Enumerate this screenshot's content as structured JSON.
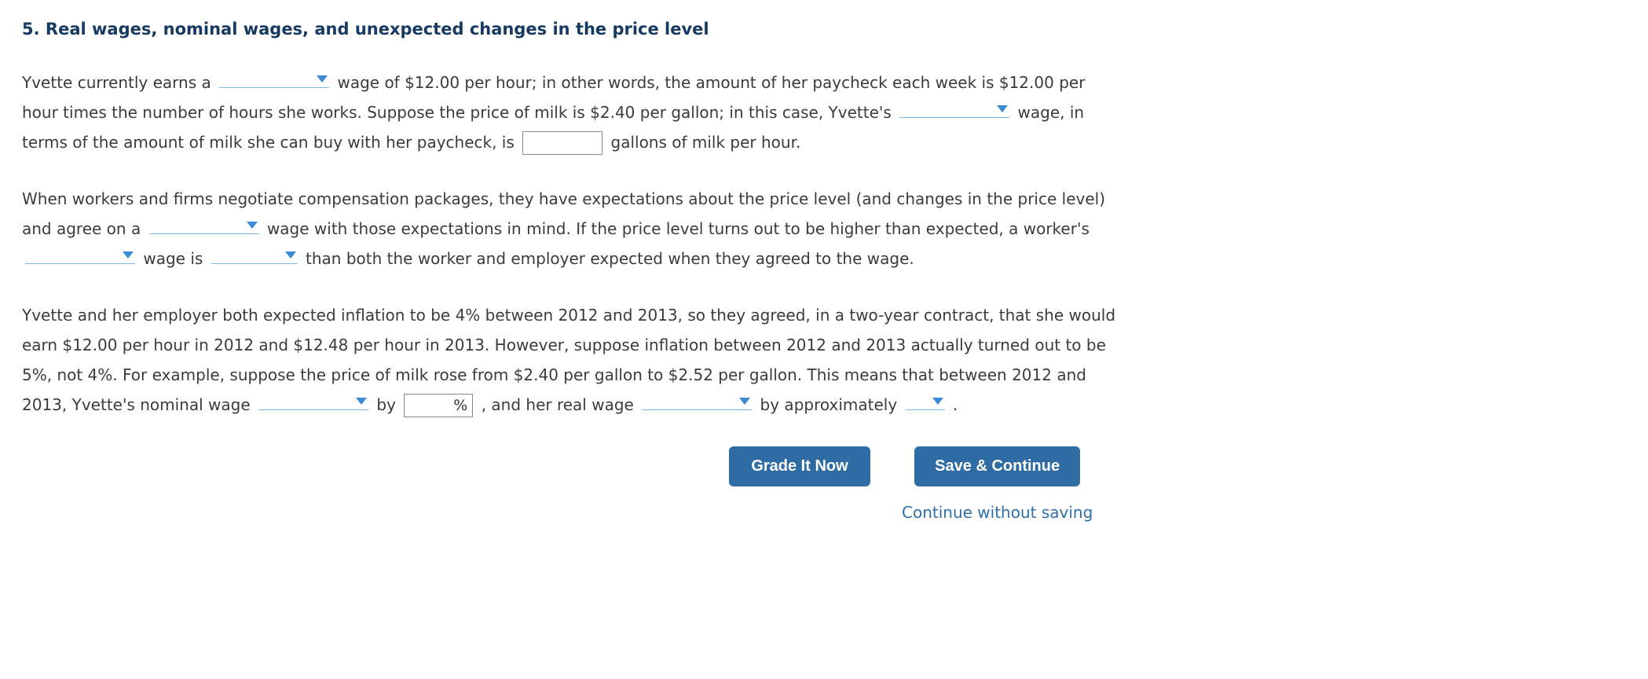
{
  "title": "5. Real wages, nominal wages, and unexpected changes in the price level",
  "para1": {
    "t1": "Yvette currently earns a",
    "t2": "wage of $12.00 per hour; in other words, the amount of her paycheck each week is $12.00 per hour times the number of hours she works. Suppose the price of milk is $2.40 per gallon; in this case, Yvette's",
    "t3": "wage, in terms of the amount of milk she can buy with her paycheck, is",
    "t4": "gallons of milk per hour."
  },
  "para2": {
    "t1": "When workers and firms negotiate compensation packages, they have expectations about the price level (and changes in the price level) and agree on a",
    "t2": "wage with those expectations in mind. If the price level turns out to be higher than expected, a worker's",
    "t3": "wage is",
    "t4": "than both the worker and employer expected when they agreed to the wage."
  },
  "para3": {
    "t1": "Yvette and her employer both expected inflation to be 4% between 2012 and 2013, so they agreed, in a two-year contract, that she would earn $12.00 per hour in 2012 and $12.48 per hour in 2013. However, suppose inflation between 2012 and 2013 actually turned out to be 5%, not 4%. For example, suppose the price of milk rose from $2.40 per gallon to $2.52 per gallon. This means that between 2012 and 2013, Yvette's nominal wage",
    "t2": "by",
    "pct_label": "%",
    "t3": ", and her real wage",
    "t4": "by approximately",
    "t5": "."
  },
  "buttons": {
    "grade": "Grade It Now",
    "save": "Save & Continue",
    "continue": "Continue without saving"
  },
  "inputs": {
    "gallons_value": "",
    "percent_value": ""
  }
}
